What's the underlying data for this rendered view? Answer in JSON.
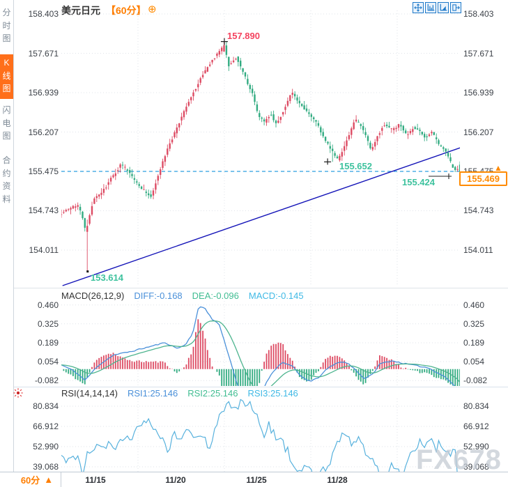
{
  "sidebar": {
    "tabs": [
      {
        "label": "分时图",
        "active": false
      },
      {
        "label": "K线图",
        "active": true
      },
      {
        "label": "闪电图",
        "active": false
      },
      {
        "label": "合约资料",
        "active": false
      }
    ]
  },
  "header": {
    "title": "美元日元",
    "timeframe": "【60分】",
    "add_indicator_icon": "⊕",
    "toolbar_icons": [
      "pan-tool",
      "axis-scale",
      "auto-scale",
      "exit-chart"
    ]
  },
  "labels": {
    "peak": "157.890",
    "low_mid": "155.652",
    "low_last": "155.424",
    "low_start": "153.614",
    "current": "155.469",
    "current_arrow": "▲",
    "macd_title": "MACD(26,12,9)",
    "macd_diff": "DIFF:-0.168",
    "macd_dea": "DEA:-0.096",
    "macd_macd": "MACD:-0.145",
    "rsi_title": "RSI(14,14,14)",
    "rsi1": "RSI1:25.146",
    "rsi2": "RSI2:25.146",
    "rsi3": "RSI3:25.146",
    "bottom_tf": "60分",
    "bottom_arrow": "▲",
    "watermark": "FX678"
  },
  "colors": {
    "up": "#dd4b63",
    "down": "#32ab81",
    "diff_line": "#4a90d9",
    "dea_line": "#4db48e",
    "rsi_line": "#57b1dd",
    "trendline": "#1515b8",
    "ref_dashed": "#2b9fe0",
    "accent_orange": "#ff7e00",
    "grid": "#dfe3e9",
    "marker": "#222222"
  },
  "chart_data": [
    {
      "type": "candlestick",
      "title": "美元日元 60分",
      "x_ticks": [
        "11/15",
        "11/20",
        "11/25",
        "11/28"
      ],
      "y_ticks": [
        158.403,
        157.671,
        156.939,
        156.207,
        155.475,
        154.743,
        154.011
      ],
      "ylim": [
        153.55,
        158.45
      ],
      "reference_line": 155.475,
      "last_price": 155.469,
      "n_candles": 170,
      "price_keypoints": [
        [
          0,
          154.7
        ],
        [
          0.02,
          154.78
        ],
        [
          0.04,
          154.85
        ],
        [
          0.055,
          154.6
        ],
        [
          0.062,
          154.35
        ],
        [
          0.068,
          154.55
        ],
        [
          0.08,
          154.95
        ],
        [
          0.1,
          155.05
        ],
        [
          0.125,
          155.35
        ],
        [
          0.15,
          155.6
        ],
        [
          0.165,
          155.5
        ],
        [
          0.185,
          155.3
        ],
        [
          0.21,
          155.1
        ],
        [
          0.225,
          155.0
        ],
        [
          0.245,
          155.45
        ],
        [
          0.27,
          155.95
        ],
        [
          0.3,
          156.45
        ],
        [
          0.325,
          156.85
        ],
        [
          0.35,
          157.2
        ],
        [
          0.375,
          157.5
        ],
        [
          0.4,
          157.75
        ],
        [
          0.41,
          157.8
        ],
        [
          0.42,
          157.45
        ],
        [
          0.44,
          157.6
        ],
        [
          0.46,
          157.25
        ],
        [
          0.48,
          156.9
        ],
        [
          0.495,
          156.5
        ],
        [
          0.51,
          156.4
        ],
        [
          0.525,
          156.55
        ],
        [
          0.54,
          156.35
        ],
        [
          0.56,
          156.65
        ],
        [
          0.578,
          156.95
        ],
        [
          0.595,
          156.75
        ],
        [
          0.615,
          156.6
        ],
        [
          0.635,
          156.45
        ],
        [
          0.655,
          156.15
        ],
        [
          0.675,
          155.9
        ],
        [
          0.694,
          155.7
        ],
        [
          0.705,
          155.85
        ],
        [
          0.72,
          156.1
        ],
        [
          0.737,
          156.45
        ],
        [
          0.75,
          156.35
        ],
        [
          0.765,
          156.1
        ],
        [
          0.778,
          155.85
        ],
        [
          0.795,
          156.15
        ],
        [
          0.81,
          156.35
        ],
        [
          0.83,
          156.25
        ],
        [
          0.85,
          156.35
        ],
        [
          0.868,
          156.15
        ],
        [
          0.885,
          156.3
        ],
        [
          0.9,
          156.2
        ],
        [
          0.915,
          156.1
        ],
        [
          0.93,
          156.2
        ],
        [
          0.945,
          156.0
        ],
        [
          0.958,
          155.9
        ],
        [
          0.97,
          155.75
        ],
        [
          0.982,
          155.55
        ],
        [
          1,
          155.469
        ]
      ],
      "marked_points": {
        "high": [
          0.409,
          157.89
        ],
        "low_start": [
          0.066,
          153.614
        ],
        "low_mid": [
          0.68,
          155.652
        ],
        "low_last": [
          1.0,
          155.424
        ]
      },
      "trendline": {
        "t1": 0.003,
        "p1": 153.35,
        "t2": 1.003,
        "p2": 155.92
      }
    },
    {
      "type": "macd",
      "params": "(26,12,9)",
      "diff": -0.168,
      "dea": -0.096,
      "macd": -0.145,
      "y_ticks": [
        0.46,
        0.325,
        0.189,
        0.054,
        -0.082
      ],
      "diff_keypoints": [
        [
          0,
          0.03
        ],
        [
          0.03,
          -0.01
        ],
        [
          0.06,
          -0.08
        ],
        [
          0.09,
          0.02
        ],
        [
          0.13,
          0.1
        ],
        [
          0.18,
          0.13
        ],
        [
          0.22,
          0.16
        ],
        [
          0.26,
          0.19
        ],
        [
          0.29,
          0.15
        ],
        [
          0.31,
          0.17
        ],
        [
          0.33,
          0.26
        ],
        [
          0.345,
          0.45
        ],
        [
          0.36,
          0.44
        ],
        [
          0.38,
          0.35
        ],
        [
          0.395,
          0.33
        ],
        [
          0.42,
          0.1
        ],
        [
          0.435,
          -0.05
        ],
        [
          0.45,
          -0.18
        ],
        [
          0.47,
          -0.28
        ],
        [
          0.49,
          -0.26
        ],
        [
          0.51,
          -0.12
        ],
        [
          0.53,
          -0.02
        ],
        [
          0.555,
          0.05
        ],
        [
          0.58,
          0.02
        ],
        [
          0.6,
          -0.05
        ],
        [
          0.625,
          -0.09
        ],
        [
          0.645,
          -0.06
        ],
        [
          0.67,
          0.01
        ],
        [
          0.7,
          0.055
        ],
        [
          0.72,
          0.04
        ],
        [
          0.74,
          -0.01
        ],
        [
          0.76,
          -0.07
        ],
        [
          0.78,
          -0.04
        ],
        [
          0.8,
          0.04
        ],
        [
          0.83,
          0.06
        ],
        [
          0.86,
          0.04
        ],
        [
          0.89,
          0.025
        ],
        [
          0.92,
          0.01
        ],
        [
          0.94,
          -0.02
        ],
        [
          0.96,
          -0.05
        ],
        [
          0.98,
          -0.1
        ],
        [
          1,
          -0.168
        ]
      ]
    },
    {
      "type": "rsi",
      "params": "(14,14,14)",
      "values": [
        25.146,
        25.146,
        25.146
      ],
      "y_ticks": [
        80.834,
        66.912,
        52.99,
        39.068
      ],
      "keypoints": [
        [
          0,
          47
        ],
        [
          0.015,
          43
        ],
        [
          0.03,
          46
        ],
        [
          0.045,
          44
        ],
        [
          0.055,
          30
        ],
        [
          0.065,
          48
        ],
        [
          0.08,
          52
        ],
        [
          0.095,
          50
        ],
        [
          0.11,
          53
        ],
        [
          0.13,
          52
        ],
        [
          0.15,
          56
        ],
        [
          0.17,
          60
        ],
        [
          0.19,
          65
        ],
        [
          0.21,
          72
        ],
        [
          0.225,
          68
        ],
        [
          0.24,
          64
        ],
        [
          0.255,
          57
        ],
        [
          0.27,
          48
        ],
        [
          0.285,
          63
        ],
        [
          0.3,
          55
        ],
        [
          0.315,
          67
        ],
        [
          0.33,
          60
        ],
        [
          0.345,
          64
        ],
        [
          0.36,
          58
        ],
        [
          0.375,
          52
        ],
        [
          0.39,
          72
        ],
        [
          0.405,
          78
        ],
        [
          0.42,
          82
        ],
        [
          0.435,
          80
        ],
        [
          0.45,
          84
        ],
        [
          0.465,
          79
        ],
        [
          0.475,
          82
        ],
        [
          0.49,
          75
        ],
        [
          0.505,
          60
        ],
        [
          0.52,
          68
        ],
        [
          0.535,
          62
        ],
        [
          0.55,
          57
        ],
        [
          0.565,
          52
        ],
        [
          0.575,
          45
        ],
        [
          0.585,
          38
        ],
        [
          0.6,
          36
        ],
        [
          0.615,
          40
        ],
        [
          0.63,
          34
        ],
        [
          0.645,
          32
        ],
        [
          0.66,
          38
        ],
        [
          0.675,
          45
        ],
        [
          0.69,
          52
        ],
        [
          0.7,
          58
        ],
        [
          0.715,
          62
        ],
        [
          0.73,
          55
        ],
        [
          0.745,
          60
        ],
        [
          0.755,
          52
        ],
        [
          0.77,
          48
        ],
        [
          0.785,
          42
        ],
        [
          0.8,
          36
        ],
        [
          0.815,
          30
        ],
        [
          0.83,
          42
        ],
        [
          0.845,
          36
        ],
        [
          0.855,
          32
        ],
        [
          0.87,
          44
        ],
        [
          0.885,
          52
        ],
        [
          0.9,
          58
        ],
        [
          0.91,
          54
        ],
        [
          0.925,
          60
        ],
        [
          0.94,
          52
        ],
        [
          0.95,
          56
        ],
        [
          0.96,
          48
        ],
        [
          0.97,
          52
        ],
        [
          0.975,
          45
        ],
        [
          0.985,
          52
        ],
        [
          1,
          25.146
        ]
      ]
    }
  ]
}
